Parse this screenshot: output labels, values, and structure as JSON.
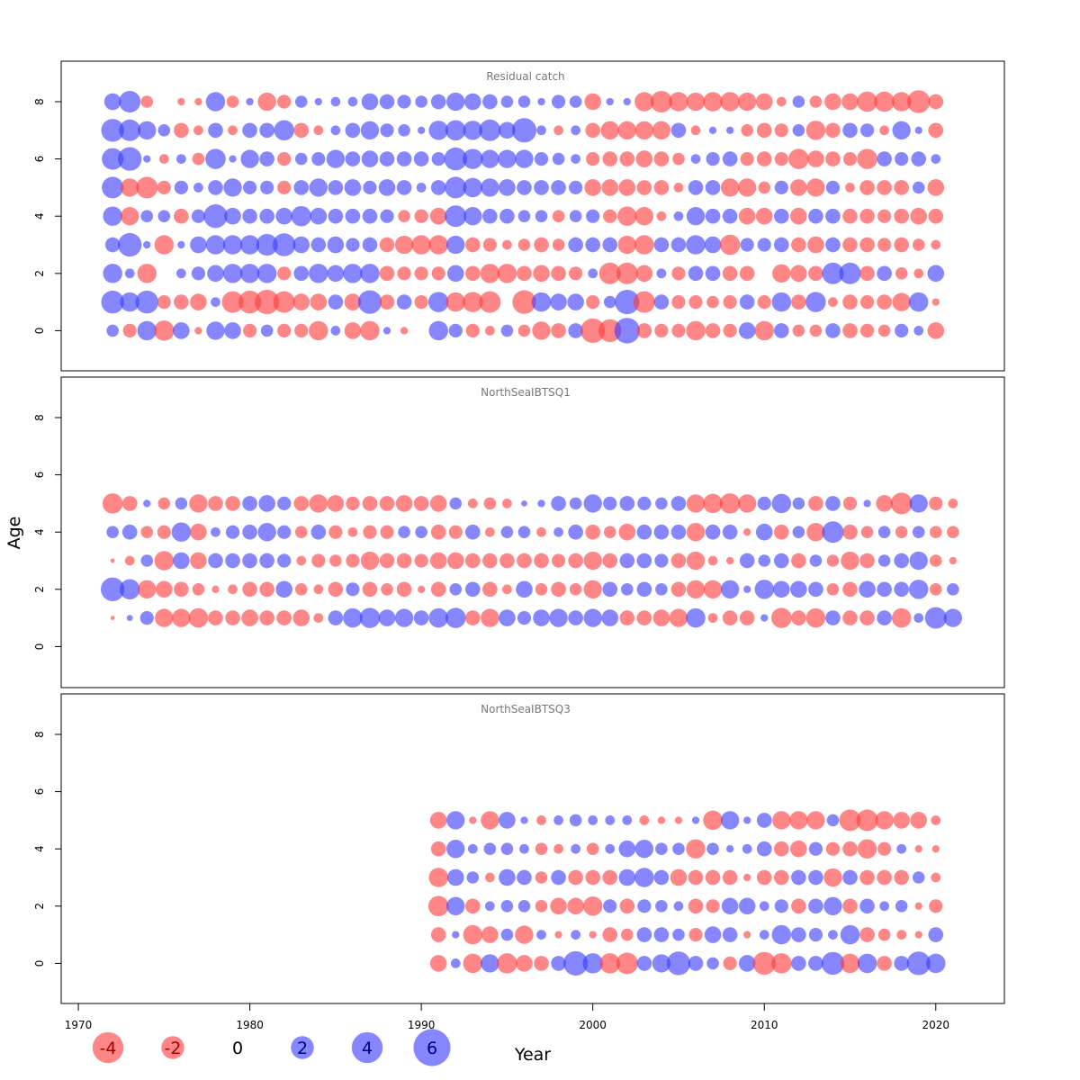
{
  "colors": {
    "negative": "#ff3b3b",
    "positive": "#3b3bff",
    "panel_title": "#777777"
  },
  "chart_data": [
    {
      "type": "bubble",
      "title": "Residual catch",
      "ylabel": "Age",
      "xlabel": "Year",
      "ages": [
        0,
        1,
        2,
        3,
        4,
        5,
        6,
        7,
        8
      ],
      "start_year": 1972,
      "years": [
        1972,
        1973,
        1974,
        1975,
        1976,
        1977,
        1978,
        1979,
        1980,
        1981,
        1982,
        1983,
        1984,
        1985,
        1986,
        1987,
        1988,
        1989,
        1990,
        1991,
        1992,
        1993,
        1994,
        1995,
        1996,
        1997,
        1998,
        1999,
        2000,
        2001,
        2002,
        2003,
        2004,
        2005,
        2006,
        2007,
        2008,
        2009,
        2010,
        2011,
        2012,
        2013,
        2014,
        2015,
        2016,
        2017,
        2018,
        2019,
        2020
      ],
      "residuals": [
        [
          0.8,
          -1.0,
          2.0,
          -2.2,
          1.5,
          -0.3,
          1.8,
          1.5,
          -1.0,
          0.8,
          -1.0,
          -1.0,
          -2.0,
          0.5,
          -1.5,
          -2.0,
          0.3,
          -0.3,
          0.0,
          2.0,
          1.0,
          -1.0,
          -0.5,
          0.8,
          -0.8,
          -1.8,
          -1.2,
          1.2,
          -3.2,
          -2.8,
          3.5,
          -1.2,
          -1.0,
          -1.0,
          -2.0,
          -1.2,
          -1.0,
          1.5,
          -2.0,
          1.2,
          -0.8,
          -0.8,
          1.2,
          -1.2,
          -1.0,
          -0.8,
          1.0,
          0.5,
          -1.5
        ],
        [
          2.8,
          2.0,
          2.8,
          -1.0,
          -1.2,
          -1.5,
          0.5,
          -2.5,
          -2.8,
          -3.2,
          -2.5,
          -1.5,
          -1.5,
          1.2,
          -1.5,
          3.0,
          -1.2,
          1.2,
          -1.0,
          2.2,
          -2.0,
          -2.2,
          -2.5,
          0.0,
          -3.0,
          2.0,
          1.5,
          1.5,
          -1.0,
          0.8,
          3.2,
          -2.5,
          1.2,
          -1.0,
          -1.0,
          -0.8,
          -1.0,
          1.2,
          -1.0,
          2.0,
          -1.2,
          2.2,
          -0.5,
          -1.2,
          -1.0,
          -1.2,
          -1.8,
          2.0,
          -0.3
        ],
        [
          2.0,
          0.5,
          -2.0,
          0.0,
          0.5,
          1.0,
          1.5,
          2.0,
          2.0,
          2.0,
          -1.0,
          1.2,
          2.0,
          1.5,
          2.0,
          2.0,
          -1.2,
          -1.0,
          -1.0,
          -1.0,
          1.5,
          -1.2,
          -2.0,
          -2.0,
          -1.2,
          -1.5,
          -1.2,
          -1.0,
          0.5,
          -2.5,
          -2.5,
          -1.5,
          0.5,
          -1.0,
          1.2,
          1.2,
          -1.2,
          -1.2,
          0.0,
          -1.8,
          -1.5,
          -1.2,
          2.5,
          2.5,
          -1.2,
          1.2,
          -0.8,
          -0.5,
          1.5
        ],
        [
          1.2,
          3.0,
          0.3,
          -2.0,
          0.3,
          1.5,
          2.0,
          2.0,
          2.0,
          2.5,
          2.8,
          1.5,
          1.2,
          1.5,
          1.0,
          1.2,
          -1.2,
          -1.8,
          -2.0,
          -2.0,
          1.8,
          -1.2,
          -1.0,
          -0.5,
          -0.8,
          -1.2,
          -0.8,
          1.2,
          1.2,
          1.2,
          -1.8,
          -2.0,
          1.2,
          1.2,
          2.0,
          1.5,
          -2.2,
          1.0,
          1.0,
          1.2,
          -1.2,
          -1.5,
          1.2,
          -1.2,
          -1.2,
          -1.0,
          -1.2,
          -0.8,
          -0.5
        ],
        [
          2.0,
          -1.8,
          0.8,
          0.8,
          -1.2,
          1.0,
          3.0,
          1.5,
          1.2,
          1.2,
          1.5,
          2.2,
          1.5,
          1.2,
          1.2,
          1.2,
          1.0,
          -0.8,
          -1.0,
          -1.5,
          2.5,
          1.8,
          1.2,
          1.2,
          0.8,
          0.8,
          -0.8,
          0.8,
          1.0,
          -1.0,
          -2.0,
          -1.8,
          -0.5,
          0.5,
          1.8,
          1.2,
          1.2,
          -1.5,
          -1.5,
          1.2,
          -1.5,
          1.2,
          1.2,
          -1.2,
          -1.2,
          -1.0,
          -1.2,
          -1.5,
          -1.2
        ],
        [
          2.5,
          -1.8,
          -2.5,
          -1.0,
          1.0,
          0.5,
          1.2,
          1.8,
          1.0,
          1.0,
          -1.0,
          1.2,
          1.8,
          1.2,
          1.5,
          1.0,
          1.5,
          1.2,
          0.5,
          1.2,
          2.5,
          2.0,
          1.8,
          1.5,
          1.2,
          1.2,
          1.2,
          1.0,
          -1.5,
          -1.5,
          -1.5,
          -1.2,
          -1.2,
          -0.5,
          1.2,
          1.2,
          -1.8,
          -1.8,
          -0.8,
          1.0,
          -1.5,
          -1.8,
          1.0,
          -0.5,
          -1.2,
          -1.2,
          -1.2,
          0.8,
          -1.5
        ],
        [
          2.5,
          3.0,
          0.3,
          -0.5,
          0.5,
          -0.8,
          2.2,
          0.3,
          1.8,
          1.2,
          -1.0,
          0.8,
          1.0,
          1.8,
          1.2,
          1.5,
          1.2,
          1.2,
          1.2,
          1.0,
          2.8,
          2.2,
          1.8,
          1.8,
          1.8,
          1.0,
          0.8,
          0.5,
          -1.0,
          -1.2,
          -1.2,
          -1.5,
          -1.2,
          -0.8,
          0.5,
          1.0,
          1.2,
          -1.0,
          -1.2,
          -1.0,
          -2.2,
          -1.5,
          -1.2,
          -1.0,
          -2.2,
          1.2,
          1.0,
          1.2,
          0.5
        ],
        [
          2.8,
          2.5,
          1.8,
          0.8,
          -1.2,
          -0.5,
          1.2,
          -0.5,
          1.2,
          1.2,
          2.2,
          -1.2,
          -0.5,
          0.5,
          1.2,
          1.8,
          1.0,
          0.8,
          0.3,
          2.0,
          2.2,
          2.0,
          2.5,
          1.5,
          3.2,
          0.5,
          -0.5,
          0.5,
          -1.2,
          -1.8,
          -1.8,
          -1.8,
          -1.8,
          1.2,
          -0.5,
          0.3,
          0.3,
          -0.8,
          -1.2,
          -1.0,
          0.8,
          -2.0,
          -1.2,
          1.2,
          1.0,
          -0.5,
          1.8,
          0.3,
          -1.2
        ],
        [
          1.5,
          2.5,
          -0.8,
          0.0,
          -0.3,
          -0.3,
          2.0,
          -0.8,
          0.3,
          -1.8,
          -1.0,
          0.8,
          0.3,
          0.5,
          0.5,
          1.5,
          1.2,
          1.0,
          0.8,
          1.2,
          1.8,
          1.5,
          1.2,
          0.8,
          0.8,
          0.3,
          1.0,
          0.8,
          -1.5,
          0.3,
          0.3,
          -2.0,
          -2.5,
          -2.0,
          -1.8,
          -2.0,
          -2.0,
          -1.8,
          -1.5,
          -0.5,
          0.8,
          -0.8,
          -1.5,
          -1.5,
          -2.2,
          -2.2,
          -2.0,
          -2.8,
          -1.2
        ]
      ]
    },
    {
      "type": "bubble",
      "title": "NorthSeaIBTSQ1",
      "ylabel": "Age",
      "xlabel": "Year",
      "ages": [
        1,
        2,
        3,
        4,
        5
      ],
      "start_year": 1972,
      "years": [
        1972,
        1973,
        1974,
        1975,
        1976,
        1977,
        1978,
        1979,
        1980,
        1981,
        1982,
        1983,
        1984,
        1985,
        1986,
        1987,
        1988,
        1989,
        1990,
        1991,
        1992,
        1993,
        1994,
        1995,
        1996,
        1997,
        1998,
        1999,
        2000,
        2001,
        2002,
        2003,
        2004,
        2005,
        2006,
        2007,
        2008,
        2009,
        2010,
        2011,
        2012,
        2013,
        2014,
        2015,
        2016,
        2017,
        2018,
        2019,
        2020,
        2021
      ],
      "residuals": [
        [
          -0.1,
          0.2,
          1.0,
          -1.8,
          -1.8,
          -2.0,
          -1.2,
          -1.2,
          -1.5,
          -1.2,
          -1.2,
          -1.5,
          -0.5,
          1.2,
          2.0,
          2.2,
          1.5,
          1.8,
          1.2,
          2.0,
          2.2,
          -1.2,
          -1.8,
          1.5,
          1.0,
          1.5,
          1.8,
          1.2,
          1.8,
          1.5,
          -1.2,
          -1.2,
          -1.5,
          -1.8,
          2.0,
          -0.5,
          -1.2,
          -1.2,
          0.3,
          -2.2,
          -1.2,
          -2.0,
          1.2,
          -1.2,
          -1.2,
          1.2,
          -2.0,
          0.5,
          2.5,
          1.8
        ],
        [
          3.0,
          2.2,
          -1.8,
          -1.5,
          -1.2,
          -0.8,
          -0.3,
          -0.5,
          -1.2,
          -1.2,
          1.5,
          -0.8,
          -0.5,
          -1.2,
          1.0,
          -1.2,
          -0.8,
          -1.2,
          -0.3,
          -1.2,
          0.8,
          1.2,
          -1.2,
          -0.5,
          1.5,
          -0.8,
          -1.2,
          -0.8,
          -1.8,
          1.2,
          0.8,
          1.2,
          0.8,
          -1.2,
          -1.8,
          -1.8,
          1.8,
          0.3,
          2.0,
          1.5,
          1.5,
          1.2,
          -0.8,
          -1.2,
          1.5,
          1.2,
          1.2,
          2.0,
          -0.8,
          0.8
        ],
        [
          -0.1,
          -0.5,
          0.8,
          -2.0,
          1.5,
          -1.5,
          1.2,
          1.2,
          1.2,
          1.2,
          1.0,
          -0.5,
          -1.0,
          -0.8,
          -1.0,
          -1.8,
          -1.2,
          -1.2,
          -1.0,
          -1.5,
          -1.5,
          -1.2,
          -1.2,
          -1.2,
          -1.2,
          -1.2,
          -1.0,
          -1.2,
          -1.8,
          -1.2,
          1.2,
          1.2,
          1.0,
          -1.2,
          -1.8,
          -0.5,
          -0.3,
          1.2,
          0.8,
          1.2,
          -1.2,
          0.8,
          -0.8,
          -1.8,
          -1.2,
          0.8,
          1.2,
          1.8,
          -0.8,
          -0.3
        ],
        [
          0.8,
          1.2,
          -0.8,
          -1.0,
          2.0,
          -1.5,
          0.5,
          1.0,
          1.2,
          1.8,
          1.0,
          -0.8,
          1.2,
          -1.0,
          -0.5,
          -1.0,
          -1.0,
          0.8,
          0.8,
          -1.2,
          -1.0,
          1.2,
          -0.5,
          0.8,
          0.8,
          -0.5,
          0.5,
          1.2,
          -1.2,
          -0.8,
          -1.5,
          1.2,
          1.2,
          1.2,
          -1.8,
          1.2,
          1.2,
          -0.3,
          1.5,
          -1.2,
          0.8,
          -1.8,
          2.5,
          -1.2,
          -0.8,
          0.8,
          -0.8,
          0.8,
          -0.8,
          -0.8
        ],
        [
          -2.2,
          -1.2,
          0.3,
          -0.8,
          0.8,
          -1.8,
          -1.2,
          -1.2,
          1.2,
          1.5,
          1.0,
          -1.2,
          -1.8,
          -1.5,
          -1.0,
          -1.2,
          -1.2,
          -1.5,
          -1.2,
          -1.5,
          0.8,
          -0.5,
          -0.8,
          -0.5,
          0.2,
          0.3,
          1.2,
          0.8,
          1.8,
          1.0,
          1.2,
          1.0,
          0.8,
          1.2,
          -1.8,
          -2.0,
          -2.2,
          -1.8,
          1.0,
          2.0,
          0.8,
          -1.2,
          1.2,
          -1.0,
          0.3,
          -1.5,
          -2.5,
          1.8,
          -1.0,
          -0.5
        ]
      ]
    },
    {
      "type": "bubble",
      "title": "NorthSeaIBTSQ3",
      "ylabel": "Age",
      "xlabel": "Year",
      "ages": [
        0,
        1,
        2,
        3,
        4,
        5
      ],
      "start_year": 1991,
      "years": [
        1991,
        1992,
        1993,
        1994,
        1995,
        1996,
        1997,
        1998,
        1999,
        2000,
        2001,
        2002,
        2003,
        2004,
        2005,
        2006,
        2007,
        2008,
        2009,
        2010,
        2011,
        2012,
        2013,
        2014,
        2015,
        2016,
        2017,
        2018,
        2019,
        2020
      ],
      "residuals": [
        [
          -1.5,
          0.5,
          -2.0,
          1.8,
          -2.2,
          -1.5,
          -1.2,
          1.2,
          3.2,
          2.2,
          -2.2,
          -2.5,
          1.2,
          1.8,
          3.0,
          1.2,
          0.8,
          -1.0,
          1.5,
          -2.8,
          -2.2,
          1.2,
          1.2,
          2.8,
          -2.0,
          2.0,
          -1.2,
          1.2,
          3.0,
          2.0
        ],
        [
          -1.2,
          0.3,
          -2.0,
          -1.5,
          0.8,
          -1.8,
          0.5,
          -0.3,
          0.5,
          -0.3,
          -1.2,
          -0.8,
          1.2,
          1.2,
          0.8,
          -1.0,
          1.5,
          1.2,
          -0.3,
          0.5,
          2.0,
          1.2,
          1.0,
          0.5,
          2.0,
          -1.2,
          -0.8,
          -0.5,
          -0.3,
          1.2
        ],
        [
          -2.2,
          1.8,
          -1.2,
          0.5,
          0.8,
          0.8,
          -0.8,
          -1.5,
          -1.5,
          -2.0,
          1.0,
          -1.2,
          1.0,
          0.8,
          0.5,
          -1.2,
          -1.0,
          1.5,
          1.5,
          0.5,
          1.0,
          -1.2,
          1.2,
          1.8,
          -1.2,
          1.2,
          0.5,
          0.8,
          -0.3,
          -1.0
        ],
        [
          -2.0,
          1.5,
          0.8,
          -0.5,
          1.5,
          1.2,
          -0.8,
          1.2,
          -1.2,
          -1.2,
          -1.2,
          1.5,
          2.0,
          1.2,
          -1.5,
          -1.2,
          -1.2,
          -1.2,
          -0.3,
          -1.2,
          -1.2,
          1.2,
          1.2,
          -1.8,
          1.2,
          -1.2,
          -1.2,
          -1.2,
          0.8,
          -0.5
        ],
        [
          -1.2,
          1.8,
          0.5,
          0.8,
          0.8,
          0.5,
          -0.8,
          -0.5,
          0.5,
          -0.8,
          0.5,
          1.5,
          1.8,
          0.8,
          0.8,
          -2.0,
          0.8,
          0.3,
          0.5,
          1.2,
          -1.2,
          -1.5,
          1.0,
          -1.0,
          -1.2,
          -2.0,
          -1.0,
          0.5,
          -0.3,
          -0.3
        ],
        [
          -1.5,
          1.8,
          -0.3,
          -1.8,
          1.5,
          0.3,
          -0.5,
          0.5,
          0.8,
          0.5,
          0.5,
          0.5,
          -0.5,
          -0.3,
          -0.3,
          0.3,
          -2.0,
          1.8,
          0.3,
          1.2,
          -1.8,
          -1.8,
          -1.8,
          0.8,
          -2.5,
          -2.5,
          -1.8,
          -1.5,
          -1.5,
          -0.5
        ]
      ]
    }
  ],
  "x_axis": {
    "ticks": [
      1970,
      1980,
      1990,
      2000,
      2010,
      2020
    ],
    "label": "Year",
    "range": [
      1969,
      2024
    ]
  },
  "y_axis": {
    "ticks": [
      0,
      2,
      4,
      6,
      8
    ],
    "label": "Age",
    "range": [
      -1.4,
      9.4
    ]
  },
  "legend": {
    "position": "bottom-left",
    "entries": [
      {
        "label": "-4",
        "value": -4
      },
      {
        "label": "-2",
        "value": -2
      },
      {
        "label": "0",
        "value": 0
      },
      {
        "label": "2",
        "value": 2
      },
      {
        "label": "4",
        "value": 4
      },
      {
        "label": "6",
        "value": 6
      }
    ]
  }
}
